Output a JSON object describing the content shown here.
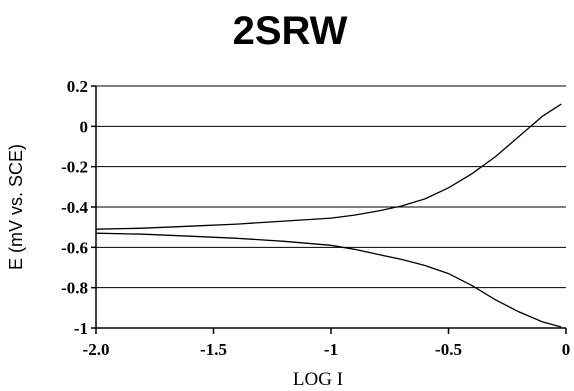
{
  "chart_data": {
    "type": "line",
    "title": "2SRW",
    "xlabel": "LOG I",
    "ylabel": "E (mV vs. SCE)",
    "xlim": [
      -2.0,
      0
    ],
    "ylim": [
      -1,
      0.2
    ],
    "x_ticks": [
      -2.0,
      -1.5,
      -1,
      -0.5,
      0
    ],
    "x_tick_labels": [
      "-2.0",
      "-1.5",
      "-1",
      "-0.5",
      "0"
    ],
    "y_ticks": [
      0.2,
      0,
      -0.2,
      -0.4,
      -0.6,
      -0.8,
      -1
    ],
    "y_tick_labels": [
      "0.2",
      "0",
      "-0.2",
      "-0.4",
      "-0.6",
      "-0.8",
      "-1"
    ],
    "grid": {
      "horizontal": true,
      "vertical": false
    },
    "series": [
      {
        "x": [
          -2.0,
          -1.8,
          -1.6,
          -1.4,
          -1.2,
          -1.0,
          -0.9,
          -0.8,
          -0.7,
          -0.6,
          -0.5,
          -0.4,
          -0.3,
          -0.2,
          -0.1,
          -0.02
        ],
        "y": [
          -0.51,
          -0.505,
          -0.495,
          -0.485,
          -0.47,
          -0.455,
          -0.44,
          -0.42,
          -0.395,
          -0.36,
          -0.305,
          -0.235,
          -0.15,
          -0.05,
          0.05,
          0.11
        ]
      },
      {
        "x": [
          -2.0,
          -1.8,
          -1.6,
          -1.4,
          -1.2,
          -1.0,
          -0.9,
          -0.8,
          -0.7,
          -0.6,
          -0.5,
          -0.4,
          -0.3,
          -0.2,
          -0.1,
          -0.02
        ],
        "y": [
          -0.53,
          -0.535,
          -0.545,
          -0.555,
          -0.57,
          -0.59,
          -0.61,
          -0.635,
          -0.66,
          -0.69,
          -0.73,
          -0.79,
          -0.86,
          -0.92,
          -0.97,
          -0.995
        ]
      }
    ]
  }
}
